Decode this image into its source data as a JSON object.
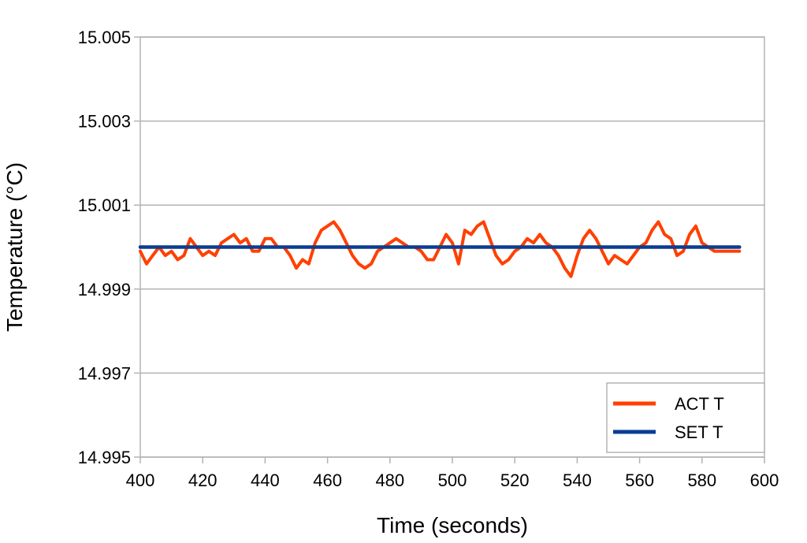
{
  "chart_data": {
    "type": "line",
    "title": "",
    "xlabel": "Time (seconds)",
    "ylabel": "Temperature (°C)",
    "xlim": [
      400,
      600
    ],
    "ylim": [
      14.995,
      15.005
    ],
    "xticks": [
      "400",
      "420",
      "440",
      "460",
      "480",
      "500",
      "520",
      "540",
      "560",
      "580",
      "600"
    ],
    "yticks": [
      "15.005",
      "15.003",
      "15.001",
      "14.999",
      "14.997",
      "14.995"
    ],
    "grid": true,
    "legend": {
      "position": "bottom-right"
    },
    "series": [
      {
        "name": "ACT T",
        "color": "#ff4000",
        "x": [
          400,
          402,
          404,
          406,
          408,
          410,
          412,
          414,
          416,
          418,
          420,
          422,
          424,
          426,
          428,
          430,
          432,
          434,
          436,
          438,
          440,
          442,
          444,
          446,
          448,
          450,
          452,
          454,
          456,
          458,
          460,
          462,
          464,
          466,
          468,
          470,
          472,
          474,
          476,
          478,
          480,
          482,
          484,
          486,
          488,
          490,
          492,
          494,
          496,
          498,
          500,
          502,
          504,
          506,
          508,
          510,
          512,
          514,
          516,
          518,
          520,
          522,
          524,
          526,
          528,
          530,
          532,
          534,
          536,
          538,
          540,
          542,
          544,
          546,
          548,
          550,
          552,
          554,
          556,
          558,
          560,
          562,
          564,
          566,
          568,
          570,
          572,
          574,
          576,
          578,
          580,
          582,
          584,
          586,
          588,
          590,
          592
        ],
        "values": [
          14.9999,
          14.9996,
          14.9998,
          15.0,
          14.9998,
          14.9999,
          14.9997,
          14.9998,
          15.0002,
          15.0,
          14.9998,
          14.9999,
          14.9998,
          15.0001,
          15.0002,
          15.0003,
          15.0001,
          15.0002,
          14.9999,
          14.9999,
          15.0002,
          15.0002,
          15.0,
          15.0,
          14.9998,
          14.9995,
          14.9997,
          14.9996,
          15.0001,
          15.0004,
          15.0005,
          15.0006,
          15.0004,
          15.0001,
          14.9998,
          14.9996,
          14.9995,
          14.9996,
          14.9999,
          15.0,
          15.0001,
          15.0002,
          15.0001,
          15.0,
          15.0,
          14.9999,
          14.9997,
          14.9997,
          15.0,
          15.0003,
          15.0001,
          14.9996,
          15.0004,
          15.0003,
          15.0005,
          15.0006,
          15.0002,
          14.9998,
          14.9996,
          14.9997,
          14.9999,
          15.0,
          15.0002,
          15.0001,
          15.0003,
          15.0001,
          15.0,
          14.9998,
          14.9995,
          14.9993,
          14.9998,
          15.0002,
          15.0004,
          15.0002,
          14.9999,
          14.9996,
          14.9998,
          14.9997,
          14.9996,
          14.9998,
          15.0,
          15.0001,
          15.0004,
          15.0006,
          15.0003,
          15.0002,
          14.9998,
          14.9999,
          15.0003,
          15.0005,
          15.0001,
          15.0,
          14.9999,
          14.9999,
          14.9999,
          14.9999,
          14.9999
        ]
      },
      {
        "name": "SET T",
        "color": "#0b3d91",
        "x": [
          400,
          592
        ],
        "values": [
          15.0,
          15.0
        ]
      }
    ]
  }
}
